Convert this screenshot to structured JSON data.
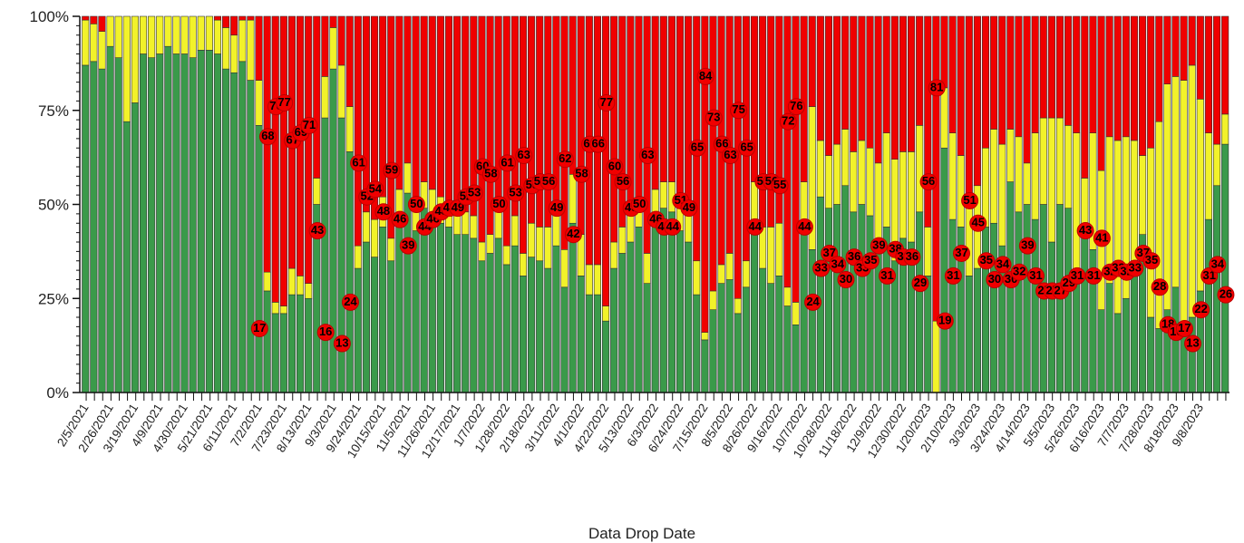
{
  "chart_data": {
    "type": "stacked_bar",
    "x_label": "Data Drop Date",
    "categories": [
      "2/5/2021",
      null,
      null,
      "2/26/2021",
      null,
      null,
      "3/19/2021",
      null,
      null,
      "4/9/2021",
      null,
      null,
      "4/30/2021",
      null,
      null,
      "5/21/2021",
      null,
      null,
      "6/11/2021",
      null,
      null,
      "7/2/2021",
      null,
      null,
      "7/23/2021",
      null,
      null,
      "8/13/2021",
      null,
      null,
      "9/3/2021",
      null,
      null,
      "9/24/2021",
      null,
      null,
      "10/15/2021",
      null,
      null,
      "11/5/2021",
      null,
      null,
      "11/26/2021",
      null,
      null,
      "12/17/2021",
      null,
      null,
      "1/7/2022",
      null,
      null,
      "1/28/2022",
      null,
      null,
      "2/18/2022",
      null,
      null,
      "3/11/2022",
      null,
      null,
      "4/1/2022",
      null,
      null,
      "4/22/2022",
      null,
      null,
      "5/13/2022",
      null,
      null,
      "6/3/2022",
      null,
      null,
      "6/24/2022",
      null,
      null,
      "7/15/2022",
      null,
      null,
      "8/5/2022",
      null,
      null,
      "8/26/2022",
      null,
      null,
      "9/16/2022",
      null,
      null,
      "10/7/2022",
      null,
      null,
      "10/28/2022",
      null,
      null,
      "11/18/2022",
      null,
      null,
      "12/9/2022",
      null,
      null,
      "12/30/2022",
      null,
      null,
      "1/20/2023",
      null,
      null,
      "2/10/2023",
      null,
      null,
      "3/3/2023",
      null,
      null,
      "3/24/2023",
      null,
      null,
      "4/14/2023",
      null,
      null,
      "5/5/2023",
      null,
      null,
      "5/26/2023",
      null,
      null,
      "6/16/2023",
      null,
      null,
      "7/7/2023",
      null,
      null,
      "7/28/2023",
      null,
      null,
      "8/18/2023",
      null,
      null,
      "9/8/2023",
      null,
      null,
      null
    ],
    "series": [
      {
        "color": "#3a9a4a",
        "values": [
          87,
          88,
          86,
          92,
          89,
          72,
          77,
          90,
          89,
          90,
          92,
          90,
          90,
          89,
          91,
          91,
          90,
          86,
          85,
          88,
          83,
          71,
          27,
          21,
          21,
          26,
          26,
          25,
          50,
          73,
          86,
          73,
          64,
          33,
          40,
          36,
          44,
          35,
          47,
          53,
          43,
          49,
          47,
          45,
          44,
          42,
          42,
          41,
          35,
          37,
          41,
          34,
          39,
          31,
          36,
          35,
          33,
          39,
          28,
          45,
          31,
          26,
          26,
          19,
          33,
          37,
          40,
          44,
          29,
          48,
          49,
          48,
          43,
          40,
          26,
          14,
          22,
          29,
          30,
          21,
          28,
          46,
          33,
          29,
          31,
          23,
          18,
          43,
          38,
          52,
          49,
          50,
          55,
          48,
          50,
          47,
          39,
          44,
          35,
          41,
          40,
          48,
          31,
          0,
          65,
          46,
          44,
          31,
          33,
          44,
          45,
          39,
          56,
          48,
          50,
          46,
          50,
          40,
          50,
          49,
          32,
          42,
          38,
          22,
          29,
          21,
          25,
          33,
          42,
          20,
          17,
          22,
          28,
          16,
          20,
          27,
          46,
          55,
          66
        ]
      },
      {
        "color": "#f2f22a",
        "values": [
          12,
          10,
          10,
          8,
          11,
          28,
          23,
          10,
          11,
          10,
          8,
          10,
          10,
          11,
          9,
          9,
          9,
          11,
          10,
          11,
          16,
          12,
          5,
          3,
          2,
          7,
          5,
          4,
          7,
          11,
          11,
          14,
          12,
          6,
          8,
          10,
          8,
          6,
          7,
          8,
          7,
          7,
          7,
          7,
          7,
          9,
          6,
          6,
          5,
          5,
          9,
          5,
          8,
          6,
          9,
          9,
          11,
          12,
          10,
          13,
          11,
          8,
          8,
          4,
          7,
          7,
          11,
          6,
          8,
          6,
          7,
          8,
          6,
          11,
          9,
          2,
          5,
          5,
          7,
          4,
          7,
          10,
          11,
          15,
          14,
          5,
          6,
          13,
          38,
          15,
          14,
          16,
          15,
          16,
          17,
          18,
          22,
          25,
          27,
          23,
          24,
          23,
          13,
          19,
          16,
          23,
          19,
          18,
          22,
          21,
          25,
          27,
          14,
          20,
          11,
          23,
          23,
          33,
          23,
          22,
          37,
          15,
          31,
          37,
          39,
          46,
          43,
          34,
          21,
          45,
          55,
          60,
          56,
          67,
          67,
          51,
          23,
          11,
          8
        ]
      },
      {
        "color": "#f00000",
        "values": [
          1,
          2,
          4,
          0,
          0,
          0,
          0,
          0,
          0,
          0,
          0,
          0,
          0,
          0,
          0,
          0,
          1,
          3,
          5,
          1,
          1,
          17,
          68,
          76,
          77,
          67,
          69,
          71,
          43,
          16,
          3,
          13,
          24,
          61,
          52,
          54,
          48,
          59,
          46,
          39,
          50,
          44,
          46,
          48,
          49,
          49,
          52,
          53,
          60,
          58,
          50,
          61,
          53,
          63,
          55,
          56,
          56,
          49,
          62,
          42,
          58,
          66,
          66,
          77,
          60,
          56,
          49,
          50,
          63,
          46,
          44,
          44,
          51,
          49,
          65,
          84,
          73,
          66,
          63,
          75,
          65,
          44,
          56,
          56,
          55,
          72,
          76,
          44,
          24,
          33,
          37,
          34,
          30,
          36,
          33,
          35,
          39,
          31,
          38,
          36,
          36,
          29,
          56,
          81,
          19,
          31,
          37,
          51,
          45,
          35,
          30,
          34,
          30,
          32,
          39,
          31,
          27,
          27,
          27,
          29,
          31,
          43,
          31,
          41,
          32,
          33,
          32,
          33,
          37,
          35,
          28,
          18,
          16,
          17,
          13,
          22,
          31,
          34,
          26
        ]
      }
    ],
    "ylim": [
      0,
      100
    ],
    "yticks": [
      {
        "value": 0,
        "label": "0%"
      },
      {
        "value": 25,
        "label": "25%"
      },
      {
        "value": 50,
        "label": "50%"
      },
      {
        "value": 75,
        "label": "75%"
      },
      {
        "value": 100,
        "label": "100%"
      }
    ],
    "label_series": 2
  }
}
